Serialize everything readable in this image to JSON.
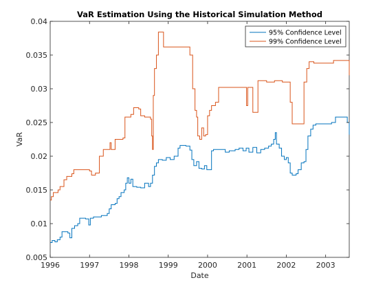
{
  "chart_data": {
    "type": "line",
    "title": "VaR Estimation Using the Historical Simulation Method",
    "xlabel": "Date",
    "ylabel": "VaR",
    "xlim": [
      1996.0,
      2003.6
    ],
    "ylim": [
      0.005,
      0.04
    ],
    "x_ticks": [
      1996,
      1997,
      1998,
      1999,
      2000,
      2001,
      2002,
      2003
    ],
    "x_tick_labels": [
      "1996",
      "1997",
      "1998",
      "1999",
      "2000",
      "2001",
      "2002",
      "2003"
    ],
    "y_ticks": [
      0.005,
      0.01,
      0.015,
      0.02,
      0.025,
      0.03,
      0.035,
      0.04
    ],
    "y_tick_labels": [
      "0.005",
      "0.01",
      "0.015",
      "0.02",
      "0.025",
      "0.03",
      "0.035",
      "0.04"
    ],
    "legend_position": "top-right",
    "grid": false,
    "series": [
      {
        "name": "95% Confidence Level",
        "color": "#0072BD",
        "points": [
          [
            1996.0,
            0.0072
          ],
          [
            1996.05,
            0.0075
          ],
          [
            1996.12,
            0.0073
          ],
          [
            1996.18,
            0.0076
          ],
          [
            1996.25,
            0.008
          ],
          [
            1996.3,
            0.0088
          ],
          [
            1996.45,
            0.0086
          ],
          [
            1996.5,
            0.0079
          ],
          [
            1996.55,
            0.0093
          ],
          [
            1996.62,
            0.0097
          ],
          [
            1996.7,
            0.01
          ],
          [
            1996.75,
            0.0108
          ],
          [
            1996.9,
            0.0107
          ],
          [
            1996.98,
            0.0098
          ],
          [
            1997.02,
            0.0108
          ],
          [
            1997.1,
            0.011
          ],
          [
            1997.3,
            0.0112
          ],
          [
            1997.45,
            0.0115
          ],
          [
            1997.5,
            0.0122
          ],
          [
            1997.55,
            0.0128
          ],
          [
            1997.65,
            0.013
          ],
          [
            1997.7,
            0.0137
          ],
          [
            1997.75,
            0.014
          ],
          [
            1997.8,
            0.0146
          ],
          [
            1997.88,
            0.015
          ],
          [
            1997.92,
            0.016
          ],
          [
            1997.96,
            0.0168
          ],
          [
            1998.0,
            0.016
          ],
          [
            1998.05,
            0.0166
          ],
          [
            1998.1,
            0.0155
          ],
          [
            1998.2,
            0.0154
          ],
          [
            1998.3,
            0.0153
          ],
          [
            1998.4,
            0.016
          ],
          [
            1998.5,
            0.0155
          ],
          [
            1998.55,
            0.016
          ],
          [
            1998.6,
            0.0172
          ],
          [
            1998.65,
            0.0185
          ],
          [
            1998.7,
            0.019
          ],
          [
            1998.75,
            0.0195
          ],
          [
            1998.85,
            0.0194
          ],
          [
            1998.95,
            0.0198
          ],
          [
            1999.05,
            0.0195
          ],
          [
            1999.15,
            0.02
          ],
          [
            1999.25,
            0.0212
          ],
          [
            1999.3,
            0.0216
          ],
          [
            1999.45,
            0.0215
          ],
          [
            1999.55,
            0.0209
          ],
          [
            1999.6,
            0.0195
          ],
          [
            1999.65,
            0.0186
          ],
          [
            1999.72,
            0.0192
          ],
          [
            1999.78,
            0.0182
          ],
          [
            1999.85,
            0.0181
          ],
          [
            1999.92,
            0.0186
          ],
          [
            1999.98,
            0.018
          ],
          [
            2000.05,
            0.018
          ],
          [
            2000.1,
            0.0208
          ],
          [
            2000.15,
            0.021
          ],
          [
            2000.3,
            0.021
          ],
          [
            2000.45,
            0.0206
          ],
          [
            2000.55,
            0.0208
          ],
          [
            2000.7,
            0.021
          ],
          [
            2000.8,
            0.0212
          ],
          [
            2000.9,
            0.0208
          ],
          [
            2000.98,
            0.0212
          ],
          [
            2001.05,
            0.0206
          ],
          [
            2001.15,
            0.0213
          ],
          [
            2001.25,
            0.0205
          ],
          [
            2001.35,
            0.021
          ],
          [
            2001.45,
            0.0212
          ],
          [
            2001.55,
            0.0215
          ],
          [
            2001.62,
            0.0218
          ],
          [
            2001.68,
            0.0225
          ],
          [
            2001.72,
            0.0235
          ],
          [
            2001.75,
            0.0218
          ],
          [
            2001.82,
            0.0212
          ],
          [
            2001.88,
            0.02
          ],
          [
            2001.95,
            0.0195
          ],
          [
            2002.0,
            0.0198
          ],
          [
            2002.05,
            0.019
          ],
          [
            2002.1,
            0.0175
          ],
          [
            2002.15,
            0.0172
          ],
          [
            2002.25,
            0.0174
          ],
          [
            2002.3,
            0.018
          ],
          [
            2002.38,
            0.019
          ],
          [
            2002.45,
            0.0192
          ],
          [
            2002.5,
            0.021
          ],
          [
            2002.55,
            0.023
          ],
          [
            2002.62,
            0.024
          ],
          [
            2002.68,
            0.0246
          ],
          [
            2002.75,
            0.0248
          ],
          [
            2003.0,
            0.0248
          ],
          [
            2003.15,
            0.025
          ],
          [
            2003.25,
            0.0258
          ],
          [
            2003.45,
            0.0258
          ],
          [
            2003.55,
            0.025
          ],
          [
            2003.6,
            0.0232
          ]
        ]
      },
      {
        "name": "99% Confidence Level",
        "color": "#D95319",
        "points": [
          [
            1996.0,
            0.0135
          ],
          [
            1996.03,
            0.014
          ],
          [
            1996.08,
            0.0146
          ],
          [
            1996.2,
            0.015
          ],
          [
            1996.25,
            0.0155
          ],
          [
            1996.35,
            0.0165
          ],
          [
            1996.42,
            0.017
          ],
          [
            1996.55,
            0.0174
          ],
          [
            1996.6,
            0.018
          ],
          [
            1996.8,
            0.018
          ],
          [
            1997.0,
            0.0178
          ],
          [
            1997.05,
            0.0172
          ],
          [
            1997.15,
            0.0175
          ],
          [
            1997.25,
            0.02
          ],
          [
            1997.35,
            0.021
          ],
          [
            1997.52,
            0.022
          ],
          [
            1997.55,
            0.021
          ],
          [
            1997.65,
            0.0225
          ],
          [
            1997.85,
            0.0227
          ],
          [
            1997.9,
            0.0258
          ],
          [
            1998.05,
            0.0262
          ],
          [
            1998.12,
            0.0272
          ],
          [
            1998.25,
            0.027
          ],
          [
            1998.3,
            0.026
          ],
          [
            1998.4,
            0.0258
          ],
          [
            1998.55,
            0.0255
          ],
          [
            1998.58,
            0.023
          ],
          [
            1998.6,
            0.021
          ],
          [
            1998.62,
            0.029
          ],
          [
            1998.65,
            0.033
          ],
          [
            1998.7,
            0.035
          ],
          [
            1998.75,
            0.0384
          ],
          [
            1998.85,
            0.0384
          ],
          [
            1998.88,
            0.0362
          ],
          [
            1999.2,
            0.0362
          ],
          [
            1999.45,
            0.0362
          ],
          [
            1999.55,
            0.035
          ],
          [
            1999.62,
            0.03
          ],
          [
            1999.68,
            0.0268
          ],
          [
            1999.72,
            0.0258
          ],
          [
            1999.75,
            0.023
          ],
          [
            1999.8,
            0.0225
          ],
          [
            1999.85,
            0.0242
          ],
          [
            1999.9,
            0.023
          ],
          [
            1999.95,
            0.0232
          ],
          [
            2000.0,
            0.026
          ],
          [
            2000.05,
            0.0268
          ],
          [
            2000.1,
            0.0275
          ],
          [
            2000.2,
            0.028
          ],
          [
            2000.28,
            0.0302
          ],
          [
            2000.5,
            0.0302
          ],
          [
            2000.7,
            0.0302
          ],
          [
            2000.98,
            0.0302
          ],
          [
            2000.99,
            0.0275
          ],
          [
            2001.02,
            0.0302
          ],
          [
            2001.1,
            0.0302
          ],
          [
            2001.15,
            0.0265
          ],
          [
            2001.25,
            0.0265
          ],
          [
            2001.28,
            0.0312
          ],
          [
            2001.5,
            0.031
          ],
          [
            2001.7,
            0.0312
          ],
          [
            2001.9,
            0.031
          ],
          [
            2002.05,
            0.031
          ],
          [
            2002.1,
            0.028
          ],
          [
            2002.15,
            0.0248
          ],
          [
            2002.4,
            0.0248
          ],
          [
            2002.45,
            0.031
          ],
          [
            2002.52,
            0.033
          ],
          [
            2002.58,
            0.034
          ],
          [
            2002.7,
            0.0338
          ],
          [
            2003.0,
            0.0338
          ],
          [
            2003.2,
            0.0342
          ],
          [
            2003.55,
            0.0342
          ],
          [
            2003.6,
            0.032
          ]
        ]
      }
    ]
  }
}
